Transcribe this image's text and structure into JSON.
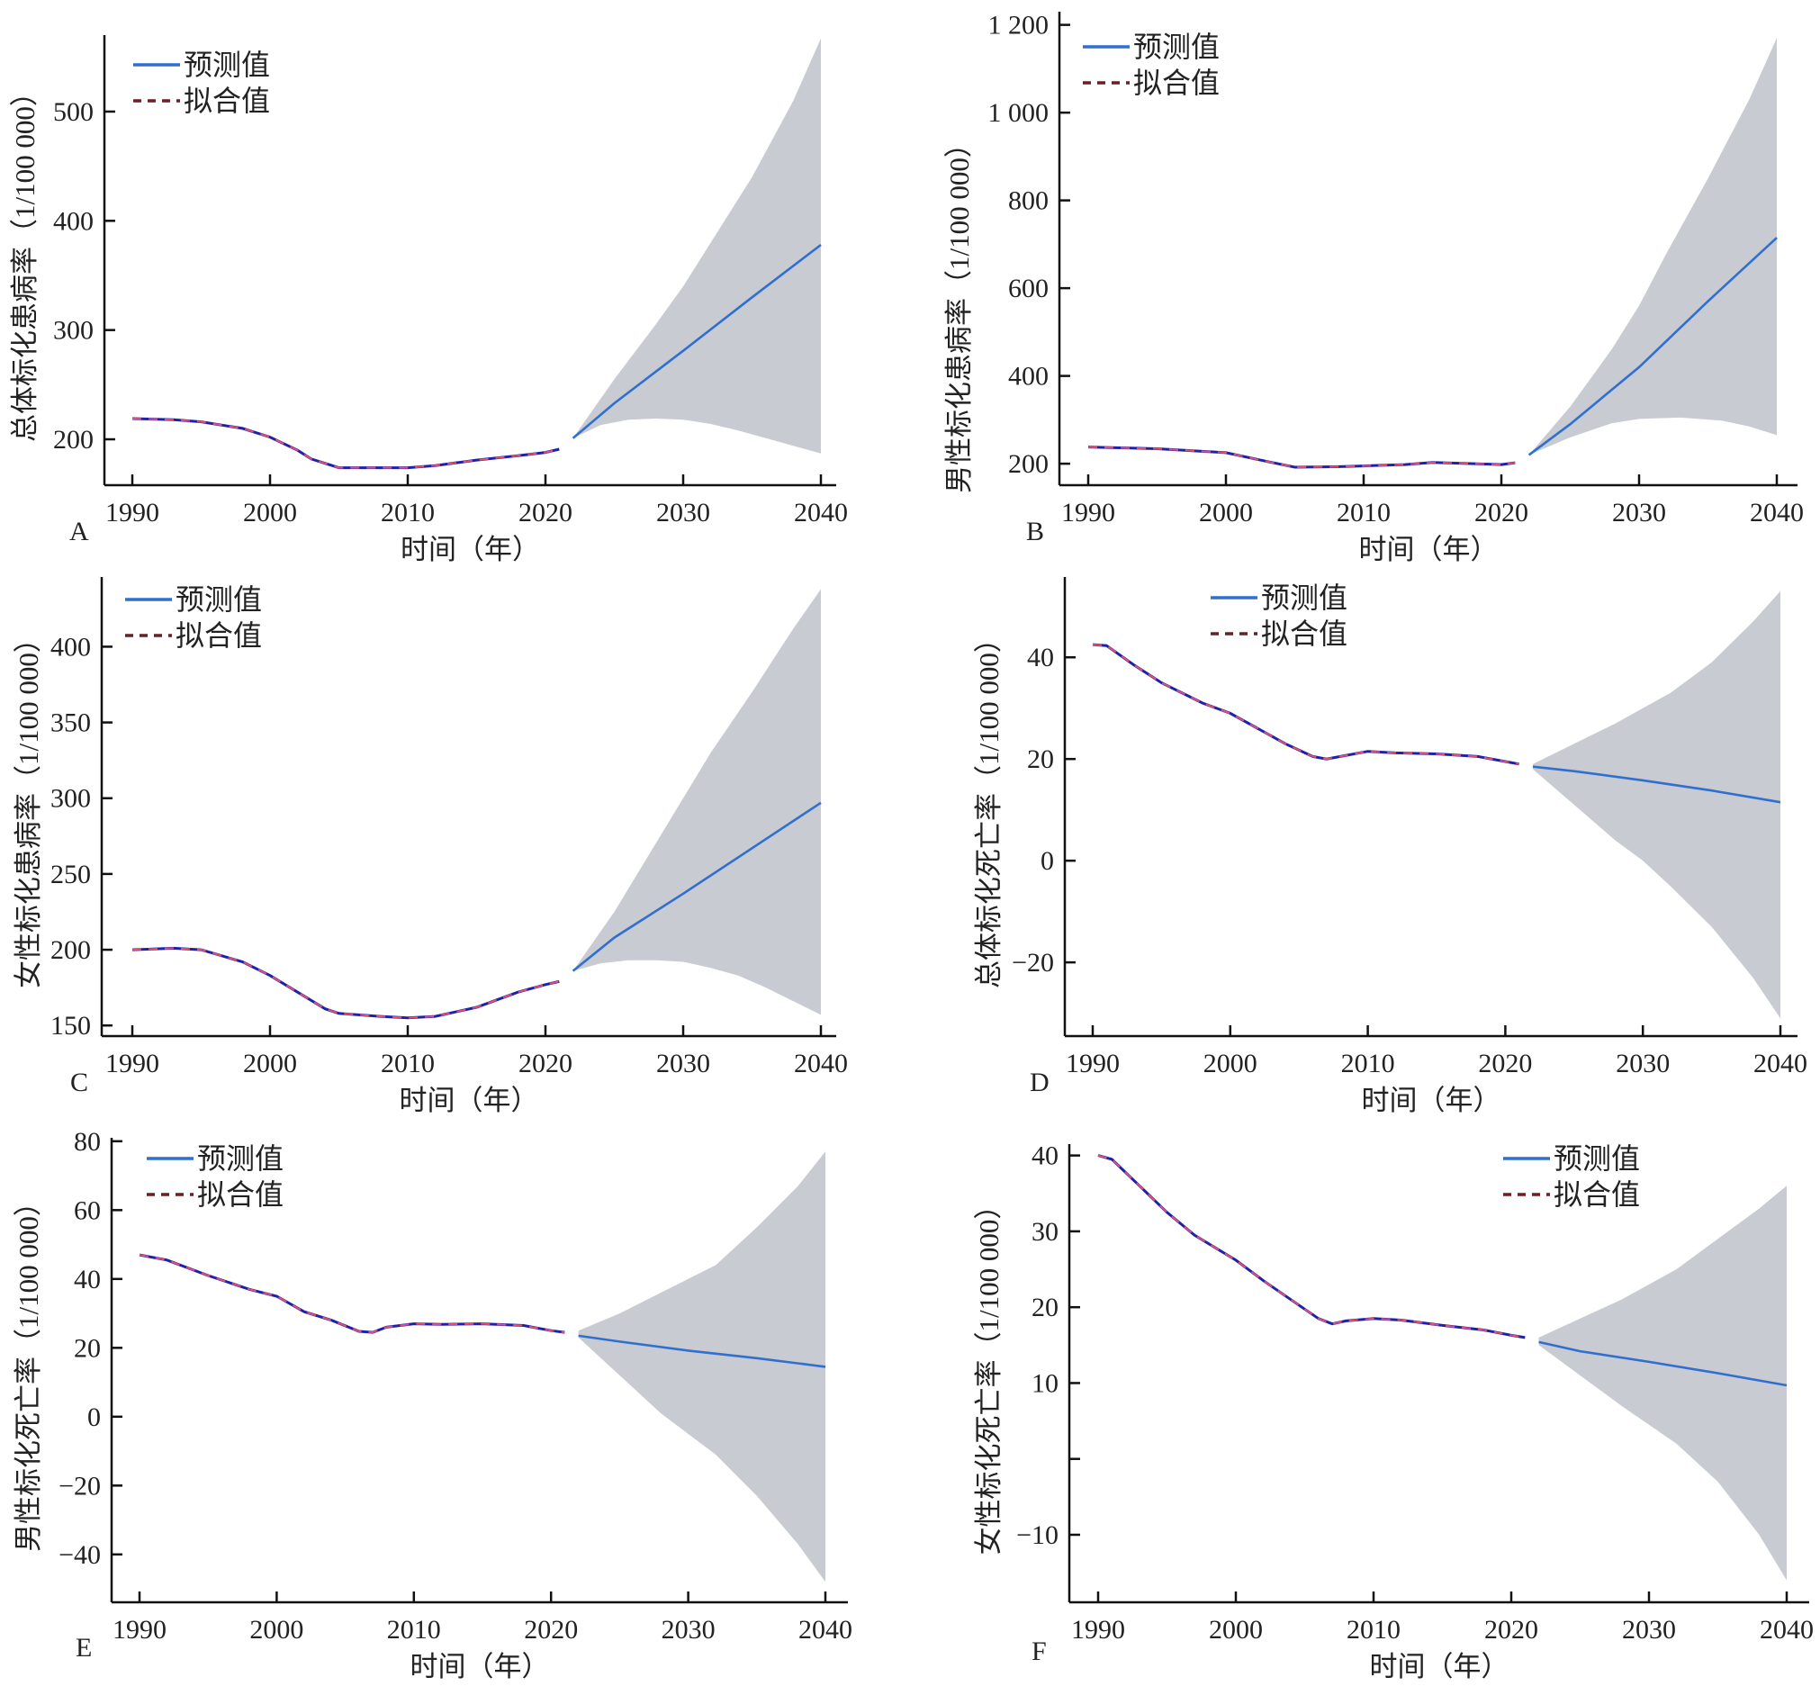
{
  "legend": {
    "predicted": "预测值",
    "fitted": "拟合值"
  },
  "colors": {
    "predicted": "#2f6fd0",
    "fitted_legend": "#6b1f24",
    "fitted_solid": "#1f22a6",
    "fitted_dash": "#e0507a",
    "ci_band": "#c9cbd2",
    "axis": "#111111"
  },
  "chart_data": [
    {
      "panel": "A",
      "type": "line",
      "ylabel": "总体标化患病率（1/100 000）",
      "xlabel": "时间（年）",
      "xlim": [
        1988,
        2041
      ],
      "ylim": [
        158,
        570
      ],
      "xticks": [
        1990,
        2000,
        2010,
        2020,
        2030,
        2040
      ],
      "xtick_labels": [
        "1990",
        "2000",
        "2010",
        "2020",
        "2030",
        "2040"
      ],
      "yticks": [
        200,
        300,
        400,
        500
      ],
      "ytick_labels": [
        "200",
        "300",
        "400",
        "500"
      ],
      "legend_position": "top-left",
      "fitted": {
        "x": [
          1990,
          1993,
          1995,
          1998,
          2000,
          2002,
          2003,
          2005,
          2008,
          2010,
          2012,
          2015,
          2018,
          2020,
          2021
        ],
        "y": [
          219,
          218,
          216,
          210,
          202,
          190,
          182,
          174,
          174,
          174,
          176,
          181,
          185,
          188,
          191
        ]
      },
      "predicted": {
        "x": [
          2022,
          2025,
          2030,
          2035,
          2040
        ],
        "y": [
          201,
          233,
          281,
          330,
          378
        ]
      },
      "ci_lower": {
        "x": [
          2022,
          2024,
          2026,
          2028,
          2030,
          2032,
          2034,
          2036,
          2038,
          2040
        ],
        "y": [
          201,
          213,
          218,
          219,
          218,
          214,
          208,
          201,
          194,
          187
        ]
      },
      "ci_upper": {
        "x": [
          2022,
          2025,
          2028,
          2030,
          2032,
          2035,
          2038,
          2040
        ],
        "y": [
          201,
          255,
          305,
          340,
          380,
          440,
          510,
          567
        ]
      }
    },
    {
      "panel": "B",
      "type": "line",
      "ylabel": "男性标化患病率（1/100 000）",
      "xlabel": "时间（年）",
      "xlim": [
        1988,
        2041
      ],
      "ylim": [
        151,
        1230
      ],
      "xticks": [
        1990,
        2000,
        2010,
        2020,
        2030,
        2040
      ],
      "xtick_labels": [
        "1990",
        "2000",
        "2010",
        "2020",
        "2030",
        "2040"
      ],
      "yticks": [
        200,
        400,
        600,
        800,
        1000,
        1200
      ],
      "ytick_labels": [
        "200",
        "400",
        "600",
        "800",
        "1 000",
        "1 200"
      ],
      "legend_position": "top-left",
      "fitted": {
        "x": [
          1990,
          1995,
          2000,
          2003,
          2005,
          2008,
          2010,
          2013,
          2015,
          2018,
          2020,
          2021
        ],
        "y": [
          238,
          234,
          225,
          205,
          192,
          193,
          195,
          198,
          203,
          200,
          198,
          202
        ]
      },
      "predicted": {
        "x": [
          2022,
          2025,
          2030,
          2035,
          2040
        ],
        "y": [
          220,
          290,
          420,
          570,
          715
        ]
      },
      "ci_lower": {
        "x": [
          2022,
          2025,
          2028,
          2030,
          2033,
          2036,
          2038,
          2040
        ],
        "y": [
          220,
          260,
          292,
          302,
          305,
          298,
          285,
          265
        ]
      },
      "ci_upper": {
        "x": [
          2022,
          2025,
          2028,
          2030,
          2032,
          2035,
          2038,
          2040
        ],
        "y": [
          220,
          330,
          460,
          560,
          680,
          850,
          1030,
          1170
        ]
      }
    },
    {
      "panel": "C",
      "type": "line",
      "ylabel": "女性标化患病率（1/100 000）",
      "xlabel": "时间（年）",
      "xlim": [
        1988,
        2041
      ],
      "ylim": [
        143,
        446
      ],
      "xticks": [
        1990,
        2000,
        2010,
        2020,
        2030,
        2040
      ],
      "xtick_labels": [
        "1990",
        "2000",
        "2010",
        "2020",
        "2030",
        "2040"
      ],
      "yticks": [
        150,
        200,
        250,
        300,
        350,
        400
      ],
      "ytick_labels": [
        "150",
        "200",
        "250",
        "300",
        "350",
        "400"
      ],
      "legend_position": "top-left",
      "fitted": {
        "x": [
          1990,
          1993,
          1995,
          1998,
          2000,
          2002,
          2004,
          2005,
          2008,
          2010,
          2012,
          2015,
          2018,
          2020,
          2021
        ],
        "y": [
          200,
          201,
          200,
          192,
          183,
          172,
          161,
          158,
          156,
          155,
          156,
          162,
          172,
          177,
          179
        ]
      },
      "predicted": {
        "x": [
          2022,
          2025,
          2030,
          2035,
          2040
        ],
        "y": [
          186,
          208,
          237,
          267,
          297
        ]
      },
      "ci_lower": {
        "x": [
          2022,
          2024,
          2026,
          2028,
          2030,
          2032,
          2034,
          2036,
          2038,
          2040
        ],
        "y": [
          186,
          191,
          193,
          193,
          192,
          188,
          183,
          175,
          166,
          157
        ]
      },
      "ci_upper": {
        "x": [
          2022,
          2025,
          2028,
          2030,
          2032,
          2035,
          2038,
          2040
        ],
        "y": [
          186,
          225,
          270,
          300,
          330,
          370,
          412,
          438
        ]
      }
    },
    {
      "panel": "D",
      "type": "line",
      "ylabel": "总体标化死亡率（1/100 000）",
      "xlabel": "时间（年）",
      "xlim": [
        1988,
        2041
      ],
      "ylim": [
        -34.5,
        55.8
      ],
      "xticks": [
        1990,
        2000,
        2010,
        2020,
        2030,
        2040
      ],
      "xtick_labels": [
        "1990",
        "2000",
        "2010",
        "2020",
        "2030",
        "2040"
      ],
      "yticks": [
        -20,
        0,
        20,
        40
      ],
      "ytick_labels": [
        "−20",
        "0",
        "20",
        "40"
      ],
      "legend_position": "top-center",
      "fitted": {
        "x": [
          1990,
          1991,
          1993,
          1995,
          1998,
          2000,
          2002,
          2004,
          2006,
          2007,
          2008,
          2010,
          2012,
          2015,
          2018,
          2020,
          2021
        ],
        "y": [
          42.5,
          42.3,
          38.5,
          35,
          31,
          29,
          26,
          23,
          20.5,
          20,
          20.5,
          21.5,
          21.2,
          21,
          20.5,
          19.5,
          19
        ]
      },
      "predicted": {
        "x": [
          2022,
          2025,
          2030,
          2035,
          2040
        ],
        "y": [
          18.5,
          17.6,
          15.8,
          13.8,
          11.5
        ]
      },
      "ci_lower": {
        "x": [
          2022,
          2025,
          2028,
          2030,
          2032,
          2035,
          2038,
          2040
        ],
        "y": [
          18,
          11,
          4,
          0,
          -5,
          -13,
          -23,
          -31
        ]
      },
      "ci_upper": {
        "x": [
          2022,
          2025,
          2028,
          2030,
          2032,
          2035,
          2038,
          2040
        ],
        "y": [
          19,
          23,
          27,
          30,
          33,
          39,
          47,
          53
        ]
      }
    },
    {
      "panel": "E",
      "type": "line",
      "ylabel": "男性标化死亡率（1/100 000）",
      "xlabel": "时间（年）",
      "xlim": [
        1988,
        2041
      ],
      "ylim": [
        -53.9,
        81
      ],
      "xticks": [
        1990,
        2000,
        2010,
        2020,
        2030,
        2040
      ],
      "xtick_labels": [
        "1990",
        "2000",
        "2010",
        "2020",
        "2030",
        "2040"
      ],
      "yticks": [
        -40,
        -20,
        0,
        20,
        40,
        60,
        80
      ],
      "ytick_labels": [
        "−40",
        "−20",
        "0",
        "20",
        "40",
        "60",
        "80"
      ],
      "legend_position": "top-left",
      "fitted": {
        "x": [
          1990,
          1992,
          1995,
          1998,
          2000,
          2002,
          2004,
          2006,
          2007,
          2008,
          2010,
          2012,
          2015,
          2018,
          2020,
          2021
        ],
        "y": [
          47,
          45.5,
          41,
          37,
          35,
          30.5,
          28,
          24.8,
          24.5,
          26,
          27,
          26.8,
          27,
          26.5,
          25,
          24.5
        ]
      },
      "predicted": {
        "x": [
          2022,
          2025,
          2030,
          2035,
          2040
        ],
        "y": [
          23.5,
          21.8,
          19.2,
          17,
          14.5
        ]
      },
      "ci_lower": {
        "x": [
          2022,
          2025,
          2028,
          2030,
          2032,
          2035,
          2038,
          2040
        ],
        "y": [
          23,
          12,
          1,
          -5,
          -11,
          -23,
          -37,
          -48
        ]
      },
      "ci_upper": {
        "x": [
          2022,
          2025,
          2028,
          2030,
          2032,
          2035,
          2038,
          2040
        ],
        "y": [
          25,
          30,
          36,
          40,
          44,
          55,
          67,
          77
        ]
      }
    },
    {
      "panel": "F",
      "type": "line",
      "ylabel": "女性标化死亡率（1/100 000）",
      "xlabel": "时间（年）",
      "xlim": [
        1988,
        2041
      ],
      "ylim": [
        -18.9,
        41.5
      ],
      "xticks": [
        1990,
        2000,
        2010,
        2020,
        2030,
        2040
      ],
      "xtick_labels": [
        "1990",
        "2000",
        "2010",
        "2020",
        "2030",
        "2040"
      ],
      "yticks": [
        40,
        30,
        20,
        10,
        0,
        -10
      ],
      "ytick_labels": [
        "40",
        "30",
        "20",
        "10",
        "",
        "−10"
      ],
      "legend_position": "top-right",
      "fitted": {
        "x": [
          1990,
          1991,
          1993,
          1995,
          1997,
          2000,
          2002,
          2004,
          2006,
          2007,
          2008,
          2010,
          2012,
          2015,
          2018,
          2020,
          2021
        ],
        "y": [
          40,
          39.5,
          36,
          32.5,
          29.5,
          26.2,
          23.5,
          21,
          18.5,
          17.8,
          18.2,
          18.5,
          18.3,
          17.6,
          17,
          16.3,
          16
        ]
      },
      "predicted": {
        "x": [
          2022,
          2025,
          2030,
          2035,
          2040
        ],
        "y": [
          15.4,
          14.2,
          12.8,
          11.3,
          9.7
        ]
      },
      "ci_lower": {
        "x": [
          2022,
          2025,
          2028,
          2030,
          2032,
          2035,
          2038,
          2040
        ],
        "y": [
          15,
          11,
          7,
          4.5,
          2,
          -3,
          -10,
          -16
        ]
      },
      "ci_upper": {
        "x": [
          2022,
          2025,
          2028,
          2030,
          2032,
          2035,
          2038,
          2040
        ],
        "y": [
          16,
          18.5,
          21,
          23,
          25,
          29,
          33,
          36
        ]
      }
    }
  ]
}
